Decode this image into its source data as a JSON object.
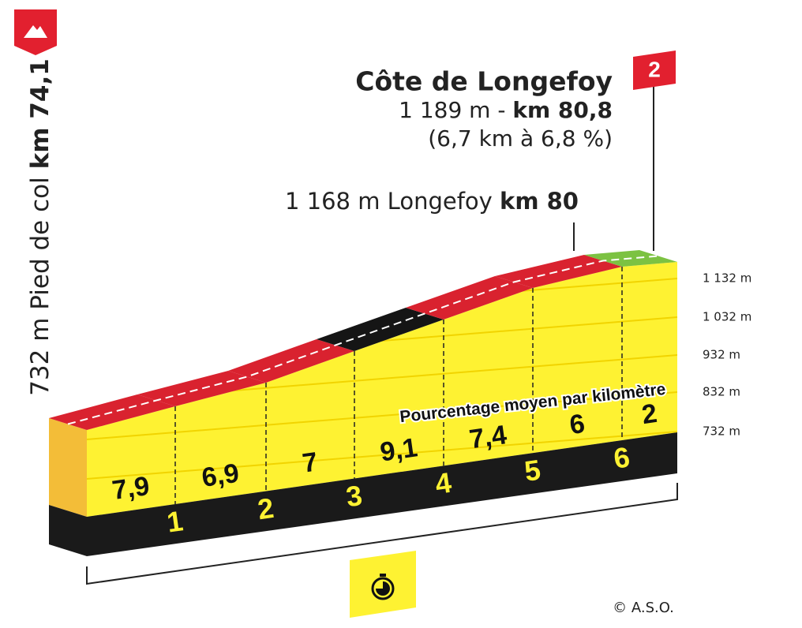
{
  "start": {
    "altitude": "732 m Pied de col",
    "km": "km 74,1"
  },
  "summit": {
    "name": "Côte de Longefoy",
    "altitude": "1 189 m -",
    "km": "km 80,8",
    "detail": "(6,7 km à 6,8 %)",
    "category": "2"
  },
  "waypoint": {
    "label": "1 168 m Longefoy",
    "km": "km 80"
  },
  "altitude_labels": [
    "1 132 m",
    "1 032 m",
    "932 m",
    "832 m",
    "732 m"
  ],
  "gradient_caption": "Pourcentage moyen par kilomètre",
  "gradients": [
    "7,9",
    "6,9",
    "7",
    "9,1",
    "7,4",
    "6",
    "2"
  ],
  "km_markers": [
    "1",
    "2",
    "3",
    "4",
    "5",
    "6"
  ],
  "credit": "© A.S.O."
}
